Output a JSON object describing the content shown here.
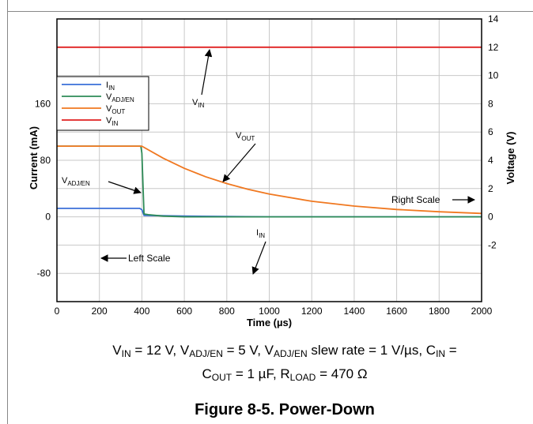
{
  "chart_data": {
    "type": "line",
    "title": "",
    "xlabel": "Time (µs)",
    "ylabel_left": "Current (mA)",
    "ylabel_right": "Voltage (V)",
    "xlim": [
      0,
      2000
    ],
    "x_ticks": [
      "0",
      "200",
      "400",
      "600",
      "800",
      "1000",
      "1200",
      "1400",
      "1600",
      "1800",
      "2000"
    ],
    "left_ticks": [
      "160",
      "80",
      "0",
      "-80"
    ],
    "right_ticks": [
      "14",
      "12",
      "10",
      "8",
      "6",
      "4",
      "2",
      "0",
      "-2"
    ],
    "grid": true,
    "legend_position": "upper-left",
    "series": [
      {
        "name": "IIN",
        "color": "#3a6fd8",
        "axis": "left (mA)",
        "x": [
          0,
          390,
          400,
          410,
          600,
          1000,
          1500,
          2000
        ],
        "y": [
          12,
          12,
          10,
          2,
          1,
          0,
          0,
          0
        ]
      },
      {
        "name": "VADJ/EN",
        "color": "#2e8b57",
        "axis": "right (V)",
        "x": [
          0,
          395,
          400,
          410,
          430,
          500,
          600,
          800,
          1000,
          1500,
          2000
        ],
        "y": [
          5,
          5,
          4.5,
          0.2,
          0.15,
          0.05,
          0,
          0,
          0,
          0,
          0
        ]
      },
      {
        "name": "VOUT",
        "color": "#f07820",
        "axis": "right (V)",
        "x": [
          0,
          400,
          500,
          600,
          700,
          800,
          900,
          1000,
          1200,
          1400,
          1600,
          1800,
          2000
        ],
        "y": [
          5,
          5,
          4.15,
          3.43,
          2.84,
          2.35,
          1.95,
          1.61,
          1.1,
          0.76,
          0.52,
          0.36,
          0.24
        ]
      },
      {
        "name": "VIN",
        "color": "#e02020",
        "axis": "right (V)",
        "x": [
          0,
          2000
        ],
        "y": [
          12,
          12
        ]
      }
    ],
    "legend": [
      {
        "label": "I",
        "sub": "IN",
        "color": "#3a6fd8"
      },
      {
        "label": "V",
        "sub": "ADJ/EN",
        "color": "#2e8b57"
      },
      {
        "label": "V",
        "sub": "OUT",
        "color": "#f07820"
      },
      {
        "label": "V",
        "sub": "IN",
        "color": "#e02020"
      }
    ],
    "annotations": {
      "vin": {
        "main": "V",
        "sub": "IN"
      },
      "vout": {
        "main": "V",
        "sub": "OUT"
      },
      "vadj": {
        "main": "V",
        "sub": "ADJ/EN"
      },
      "iin": {
        "main": "I",
        "sub": "IN"
      },
      "left_scale": "Left Scale",
      "right_scale": "Right Scale"
    }
  },
  "caption": {
    "line1": [
      {
        "t": "V"
      },
      {
        "s": "IN"
      },
      {
        "t": " = 12 V, V"
      },
      {
        "s": "ADJ/EN"
      },
      {
        "t": " = 5 V, V"
      },
      {
        "s": "ADJ/EN"
      },
      {
        "t": " slew rate = 1 V/µs, C"
      },
      {
        "s": "IN"
      },
      {
        "t": " ="
      }
    ],
    "line2": [
      {
        "t": "C"
      },
      {
        "s": "OUT"
      },
      {
        "t": " = 1 µF, R"
      },
      {
        "s": "LOAD"
      },
      {
        "t": " = 470 Ω"
      }
    ]
  },
  "figure_title": "Figure 8-5. Power-Down"
}
